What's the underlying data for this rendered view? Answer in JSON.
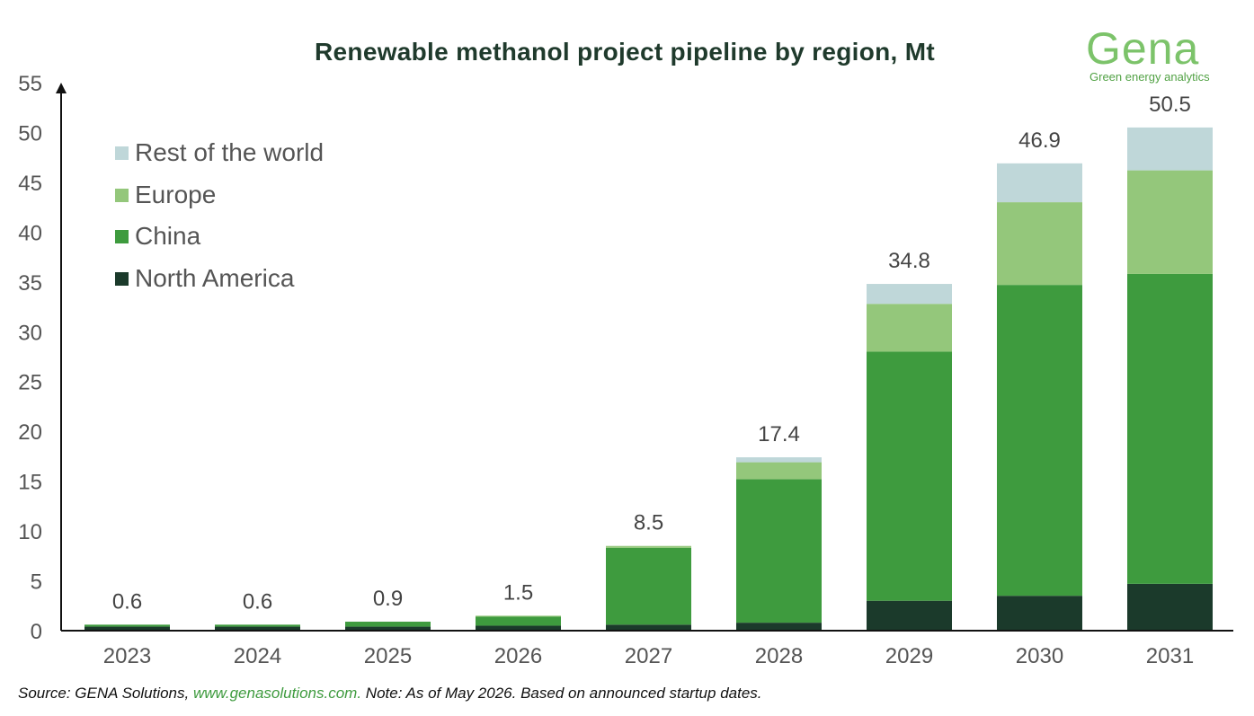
{
  "title": "Renewable methanol project pipeline by region, Mt",
  "logo": {
    "wordmark": "Gena",
    "tagline": "Green energy analytics"
  },
  "source": {
    "prefix": "Source: GENA Solutions, ",
    "link": "www.genasolutions.com.",
    "note": " Note: As of May 2026. Based on announced startup dates."
  },
  "chart_data": {
    "type": "bar",
    "stacked": true,
    "title": "Renewable methanol project pipeline by region, Mt",
    "xlabel": "",
    "ylabel": "",
    "ylim": [
      0,
      55
    ],
    "yticks": [
      0,
      5,
      10,
      15,
      20,
      25,
      30,
      35,
      40,
      45,
      50,
      55
    ],
    "legend_position": "top-left",
    "grid": false,
    "categories": [
      "2023",
      "2024",
      "2025",
      "2026",
      "2027",
      "2028",
      "2029",
      "2030",
      "2031"
    ],
    "series": [
      {
        "name": "North America",
        "color": "#1b3a2b",
        "values": [
          0.4,
          0.4,
          0.4,
          0.5,
          0.6,
          0.8,
          3.0,
          3.5,
          4.7
        ]
      },
      {
        "name": "China",
        "color": "#3e9b3e",
        "values": [
          0.2,
          0.2,
          0.5,
          0.9,
          7.7,
          14.4,
          25.0,
          31.2,
          31.1
        ]
      },
      {
        "name": "Europe",
        "color": "#94c77b",
        "values": [
          0.0,
          0.0,
          0.0,
          0.1,
          0.2,
          1.7,
          4.8,
          8.3,
          10.4
        ]
      },
      {
        "name": "Rest of the world",
        "color": "#bfd7d9",
        "values": [
          0.0,
          0.0,
          0.0,
          0.0,
          0.0,
          0.5,
          2.0,
          3.9,
          4.3
        ]
      }
    ],
    "totals": [
      "0.6",
      "0.6",
      "0.9",
      "1.5",
      "8.5",
      "17.4",
      "34.8",
      "46.9",
      "50.5"
    ]
  }
}
